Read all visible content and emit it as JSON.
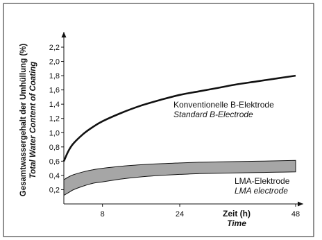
{
  "chart_data": {
    "type": "area",
    "ylabel": "Gesamtwassergehalt der Umhüllung (%)",
    "ylabel_sub": "Total Water Content of Coating",
    "xlabel": "Zeit (h)",
    "xlabel_sub": "Time",
    "y_ticks": [
      "0,2",
      "0,4",
      "0,6",
      "0,8",
      "1,0",
      "1,2",
      "1,4",
      "1,6",
      "1,8",
      "2,0",
      "2,2"
    ],
    "y_tick_values": [
      0.2,
      0.4,
      0.6,
      0.8,
      1.0,
      1.2,
      1.4,
      1.6,
      1.8,
      2.0,
      2.2
    ],
    "x_ticks": [
      "8",
      "24",
      "48"
    ],
    "x_tick_values": [
      8,
      24,
      48
    ],
    "ylim": [
      0,
      2.5
    ],
    "xlim": [
      0,
      48
    ],
    "grid": false,
    "colors": {
      "line": "#111111",
      "band_fill": "#a6a6a6",
      "axis": "#111111"
    },
    "series": [
      {
        "label": "Konventionelle B-Elektrode",
        "label_sub": "Standard B-Electrode",
        "x": [
          0,
          1,
          2,
          4,
          6,
          8,
          12,
          16,
          20,
          24,
          28,
          32,
          36,
          40,
          44,
          48
        ],
        "y": [
          0.6,
          0.75,
          0.85,
          0.98,
          1.08,
          1.16,
          1.28,
          1.38,
          1.46,
          1.53,
          1.58,
          1.63,
          1.68,
          1.72,
          1.76,
          1.8
        ]
      },
      {
        "label": "LMA-Elektrode",
        "label_sub": "LMA electrode",
        "type": "band",
        "x": [
          0,
          1,
          2,
          4,
          6,
          8,
          12,
          16,
          20,
          24,
          28,
          32,
          36,
          40,
          44,
          48
        ],
        "y_upper": [
          0.34,
          0.38,
          0.41,
          0.45,
          0.48,
          0.5,
          0.53,
          0.55,
          0.565,
          0.575,
          0.585,
          0.59,
          0.595,
          0.6,
          0.605,
          0.61
        ],
        "y_lower": [
          0.12,
          0.16,
          0.2,
          0.25,
          0.29,
          0.31,
          0.35,
          0.38,
          0.4,
          0.415,
          0.425,
          0.43,
          0.435,
          0.44,
          0.445,
          0.45
        ]
      }
    ]
  }
}
